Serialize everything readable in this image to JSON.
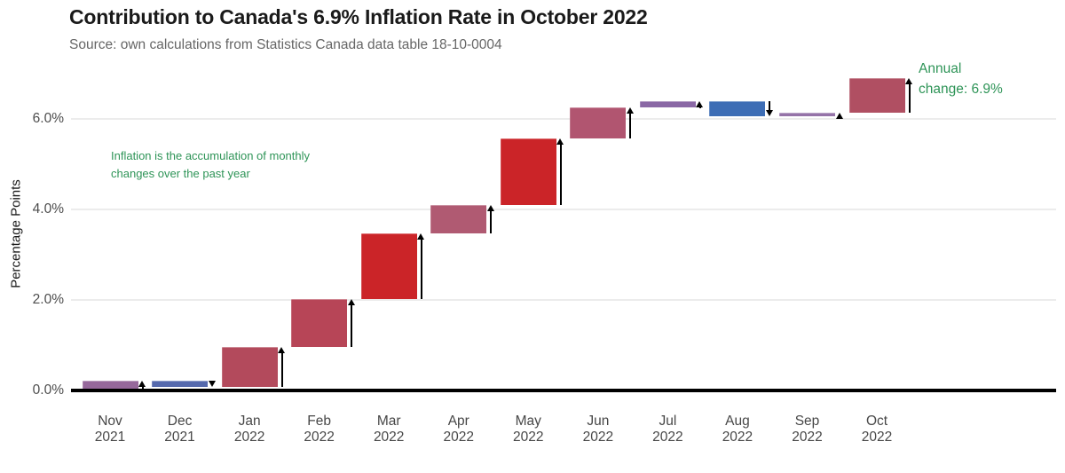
{
  "header": {
    "title": "Contribution to Canada's 6.9% Inflation Rate in October 2022",
    "subtitle": "Source: own calculations from Statistics Canada data table 18-10-0004"
  },
  "chart_data": {
    "type": "bar",
    "subtype": "waterfall",
    "title": "Contribution to Canada's 6.9% Inflation Rate in October 2022",
    "xlabel": "",
    "ylabel": "Percentage Points",
    "ylim": [
      0,
      7.3
    ],
    "grid": {
      "horizontal": true,
      "color": "#ececec"
    },
    "legend": "none",
    "yticks": [
      {
        "value": 0,
        "label": "0.0%"
      },
      {
        "value": 2,
        "label": "2.0%"
      },
      {
        "value": 4,
        "label": "4.0%"
      },
      {
        "value": 6,
        "label": "6.0%"
      }
    ],
    "categories": [
      "Nov 2021",
      "Dec 2021",
      "Jan 2022",
      "Feb 2022",
      "Mar 2022",
      "Apr 2022",
      "May 2022",
      "Jun 2022",
      "Jul 2022",
      "Aug 2022",
      "Sep 2022",
      "Oct 2022"
    ],
    "bars": [
      {
        "month": "Nov",
        "year": "2021",
        "start": 0.0,
        "end": 0.21,
        "change": 0.21,
        "color": "#96689b"
      },
      {
        "month": "Dec",
        "year": "2021",
        "start": 0.21,
        "end": 0.07,
        "change": -0.14,
        "color": "#5569ad"
      },
      {
        "month": "Jan",
        "year": "2022",
        "start": 0.07,
        "end": 0.97,
        "change": 0.9,
        "color": "#b34a5c"
      },
      {
        "month": "Feb",
        "year": "2022",
        "start": 0.97,
        "end": 2.02,
        "change": 1.05,
        "color": "#b74557"
      },
      {
        "month": "Mar",
        "year": "2022",
        "start": 2.02,
        "end": 3.47,
        "change": 1.45,
        "color": "#cb2428"
      },
      {
        "month": "Apr",
        "year": "2022",
        "start": 3.47,
        "end": 4.1,
        "change": 0.63,
        "color": "#b05a72"
      },
      {
        "month": "May",
        "year": "2022",
        "start": 4.1,
        "end": 5.56,
        "change": 1.46,
        "color": "#cb2428"
      },
      {
        "month": "Jun",
        "year": "2022",
        "start": 5.56,
        "end": 6.25,
        "change": 0.69,
        "color": "#b15570"
      },
      {
        "month": "Jul",
        "year": "2022",
        "start": 6.25,
        "end": 6.39,
        "change": 0.14,
        "color": "#8a68a5"
      },
      {
        "month": "Aug",
        "year": "2022",
        "start": 6.39,
        "end": 6.06,
        "change": -0.33,
        "color": "#3d6db5"
      },
      {
        "month": "Sep",
        "year": "2022",
        "start": 6.06,
        "end": 6.13,
        "change": 0.07,
        "color": "#9573a8"
      },
      {
        "month": "Oct",
        "year": "2022",
        "start": 6.13,
        "end": 6.9,
        "change": 0.77,
        "color": "#b04f62"
      }
    ],
    "annotations": [
      {
        "id": "inflation-note",
        "lines": [
          "Inflation is the accumulation of monthly",
          "changes over the past year"
        ],
        "color": "#2e9457"
      },
      {
        "id": "annual-change-note",
        "lines": [
          "Annual",
          "change: 6.9%"
        ],
        "color": "#2e9457"
      }
    ],
    "annual_change_total": "6.9%"
  },
  "colors": {
    "title": "#1a1a1a",
    "subtitle": "#666666",
    "axis_line": "#000000",
    "tick_label": "#4d4d4d",
    "gridline": "#ececec",
    "annotation_green": "#2e9457",
    "arrow": "#000000",
    "background": "#ffffff"
  }
}
